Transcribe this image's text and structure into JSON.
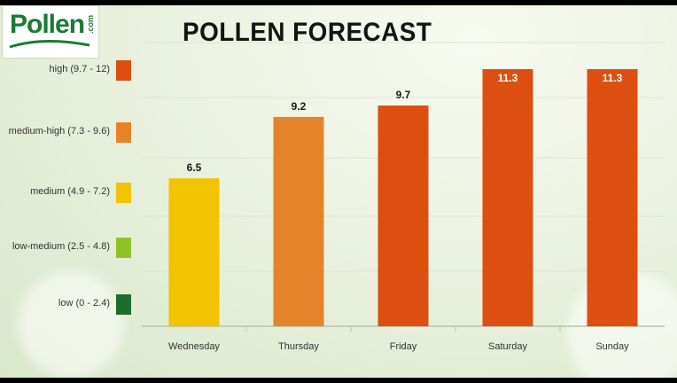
{
  "brand": {
    "logo_text": "Pollen",
    "logo_suffix": ".com"
  },
  "chart_data": {
    "type": "bar",
    "title": "POLLEN FORECAST",
    "categories": [
      "Wednesday",
      "Thursday",
      "Friday",
      "Saturday",
      "Sunday"
    ],
    "values": [
      6.5,
      9.2,
      9.7,
      11.3,
      11.3
    ],
    "value_labels": [
      "6.5",
      "9.2",
      "9.7",
      "11.3",
      "11.3"
    ],
    "ylim": [
      0,
      12
    ],
    "grid": true,
    "bar_colors": [
      "#f2c300",
      "#e5832a",
      "#dc4f10",
      "#dc4f10",
      "#dc4f10"
    ],
    "legend": [
      {
        "label": "high (9.7 - 12)",
        "color": "#dc4f10"
      },
      {
        "label": "medium-high (7.3 - 9.6)",
        "color": "#e5832a"
      },
      {
        "label": "medium (4.9 - 7.2)",
        "color": "#f2c300"
      },
      {
        "label": "low-medium (2.5 - 4.8)",
        "color": "#8fc229"
      },
      {
        "label": "low (0 - 2.4)",
        "color": "#1c6e2c"
      }
    ]
  }
}
